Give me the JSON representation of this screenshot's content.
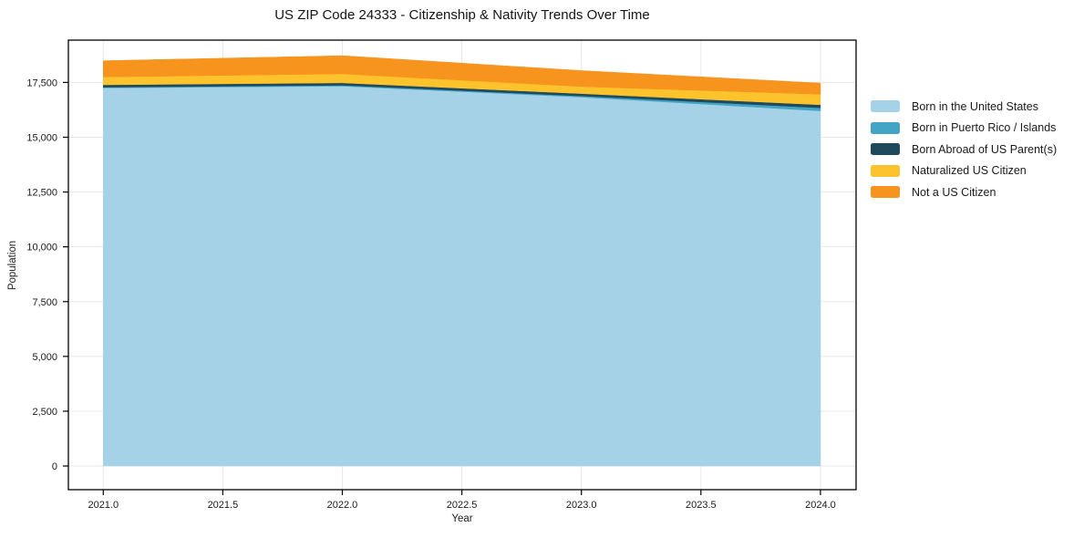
{
  "chart_data": {
    "type": "area",
    "stacked": true,
    "title": "US ZIP Code 24333 - Citizenship & Nativity Trends Over Time",
    "xlabel": "Year",
    "ylabel": "Population",
    "x": [
      2021,
      2022,
      2023,
      2024
    ],
    "series": [
      {
        "name": "Born in the United States",
        "color": "#a5d2e7",
        "values": [
          17250,
          17330,
          16830,
          16200
        ]
      },
      {
        "name": "Born in Puerto Rico / Islands",
        "color": "#43a5c5",
        "values": [
          30,
          40,
          50,
          140
        ]
      },
      {
        "name": "Born Abroad of US Parent(s)",
        "color": "#1f4a5e",
        "values": [
          110,
          110,
          110,
          140
        ]
      },
      {
        "name": "Naturalized US Citizen",
        "color": "#fcc32d",
        "values": [
          360,
          410,
          320,
          480
        ]
      },
      {
        "name": "Not a US Citizen",
        "color": "#f7941e",
        "values": [
          740,
          830,
          730,
          510
        ]
      }
    ],
    "totals": [
      18490,
      18720,
      18040,
      17470
    ],
    "xticks": [
      2021.0,
      2021.5,
      2022.0,
      2022.5,
      2023.0,
      2023.5,
      2024.0
    ],
    "xtick_labels": [
      "2021.0",
      "2021.5",
      "2022.0",
      "2022.5",
      "2023.0",
      "2023.5",
      "2024.0"
    ],
    "yticks": [
      0,
      2500,
      5000,
      7500,
      10000,
      12500,
      15000,
      17500
    ],
    "ytick_labels": [
      "0",
      "2,500",
      "5,000",
      "7,500",
      "10,000",
      "12,500",
      "15,000",
      "17,500"
    ],
    "xlim": [
      2020.854,
      2024.149
    ],
    "ylim": [
      -1080,
      19430
    ],
    "grid": true,
    "grid_color": "#e8e8e8",
    "spine_color": "#000000",
    "legend_position": "right",
    "background_color": "#ffffff"
  }
}
